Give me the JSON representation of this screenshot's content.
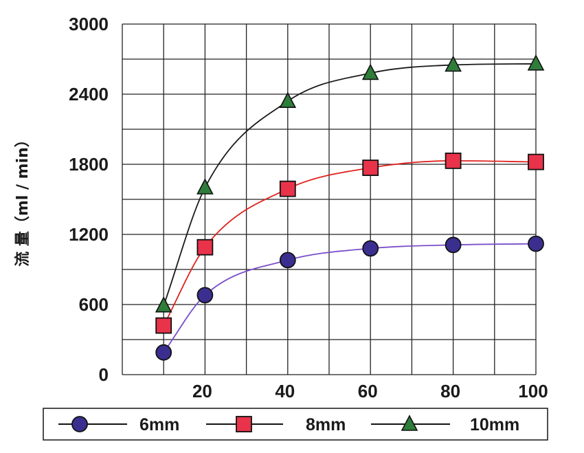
{
  "chart_data": {
    "type": "line",
    "title": "",
    "ylabel": "流 量（ml / min）",
    "xlabel": "",
    "x": [
      10,
      20,
      40,
      60,
      80,
      100
    ],
    "x_ticks": [
      20,
      40,
      60,
      80,
      100
    ],
    "y_ticks": [
      0,
      600,
      1200,
      1800,
      2400,
      3000
    ],
    "xlim": [
      0,
      100
    ],
    "ylim": [
      0,
      3000
    ],
    "grid": true,
    "legend_position": "bottom",
    "series": [
      {
        "name": "6mm",
        "values": [
          190,
          680,
          980,
          1080,
          1110,
          1120
        ],
        "color": "#3a2f8f",
        "line_color": "#7b4fc9",
        "marker": "circle"
      },
      {
        "name": "8mm",
        "values": [
          420,
          1090,
          1590,
          1770,
          1830,
          1820
        ],
        "color": "#e8334a",
        "line_color": "#e0221e",
        "marker": "square"
      },
      {
        "name": "10mm",
        "values": [
          590,
          1600,
          2340,
          2580,
          2650,
          2660
        ],
        "color": "#2f7d3a",
        "line_color": "#1a1a1a",
        "marker": "triangle"
      }
    ]
  }
}
